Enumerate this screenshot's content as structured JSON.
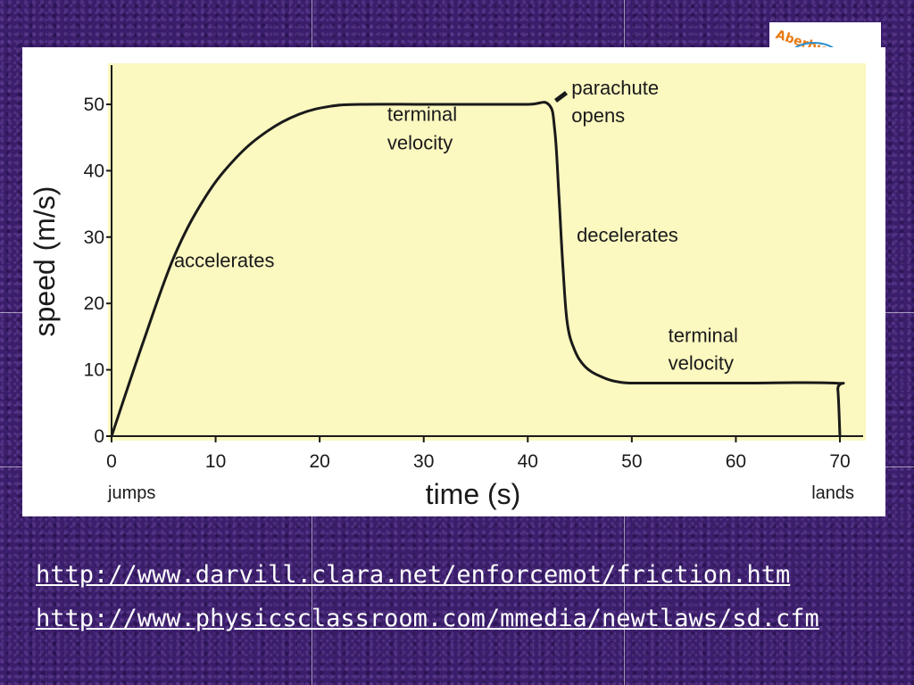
{
  "chart_data": {
    "type": "line",
    "title": "",
    "xlabel": "time (s)",
    "ylabel": "speed (m/s)",
    "xlim": [
      0,
      70
    ],
    "ylim": [
      0,
      50
    ],
    "x_ticks": [
      0,
      10,
      20,
      30,
      40,
      50,
      60,
      70
    ],
    "y_ticks": [
      0,
      10,
      20,
      30,
      40,
      50
    ],
    "x_tick_labels": [
      "0",
      "10",
      "20",
      "30",
      "40",
      "50",
      "60",
      "70"
    ],
    "y_tick_labels": [
      "0",
      "10",
      "20",
      "30",
      "40",
      "50"
    ],
    "x_tick_sublabels": [
      {
        "x": 0,
        "text": "jumps"
      },
      {
        "x": 70,
        "text": "lands"
      }
    ],
    "grid": false,
    "series": [
      {
        "x": [
          0,
          3,
          6,
          9,
          12,
          15,
          18,
          21,
          24,
          30,
          35,
          40,
          42,
          42.6,
          43,
          43.4,
          43.8,
          44.5,
          45.5,
          47,
          49,
          52,
          60,
          69.5,
          69.8,
          70
        ],
        "y": [
          0,
          14,
          27,
          36,
          42,
          46,
          48.5,
          49.7,
          50,
          50,
          50,
          50,
          50,
          46,
          36,
          25,
          17,
          13,
          10.5,
          9,
          8.1,
          8,
          8,
          8,
          7,
          0
        ]
      }
    ],
    "annotations": [
      {
        "text": "accelerates",
        "x": 6,
        "y": 25.5
      },
      {
        "text": "terminal",
        "x": 26.5,
        "y": 47.5
      },
      {
        "text": "velocity",
        "x": 26.5,
        "y": 43.2
      },
      {
        "text": "parachute",
        "x": 44.2,
        "y": 51.5
      },
      {
        "text": "opens",
        "x": 44.2,
        "y": 47.3
      },
      {
        "text": "decelerates",
        "x": 44.7,
        "y": 29.3
      },
      {
        "text": "terminal",
        "x": 53.5,
        "y": 14.2
      },
      {
        "text": "velocity",
        "x": 53.5,
        "y": 10.0
      }
    ]
  },
  "links": [
    "http://www.darvill.clara.net/enforcemot/friction.htm",
    "http://www.physicsclassroom.com/mmedia/newtlaws/sd.cfm"
  ],
  "logo": {
    "text": "Aberbie Acad"
  },
  "colors": {
    "background": "#3b1e6b",
    "plot_area": "#fbf8c0",
    "line": "#1a1a1a",
    "link": "#ffffff",
    "logo_text": "#e87a14"
  }
}
